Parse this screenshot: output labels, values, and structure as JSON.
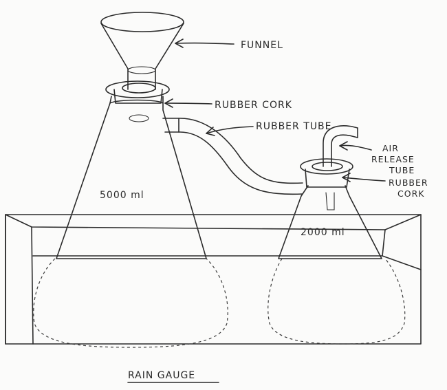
{
  "diagram": {
    "title": "RAIN GAUGE",
    "labels": {
      "funnel": "FUNNEL",
      "rubber_cork_main": "RUBBER CORK",
      "rubber_tube": "RUBBER TUBE",
      "air_release_tube_line1": "AIR",
      "air_release_tube_line2": "RELEASE",
      "air_release_tube_line3": "TUBE",
      "rubber_cork_small_line1": "RUBBER",
      "rubber_cork_small_line2": "CORK",
      "large_flask_volume": "5000 ml",
      "small_flask_volume": "2000 ml"
    }
  }
}
